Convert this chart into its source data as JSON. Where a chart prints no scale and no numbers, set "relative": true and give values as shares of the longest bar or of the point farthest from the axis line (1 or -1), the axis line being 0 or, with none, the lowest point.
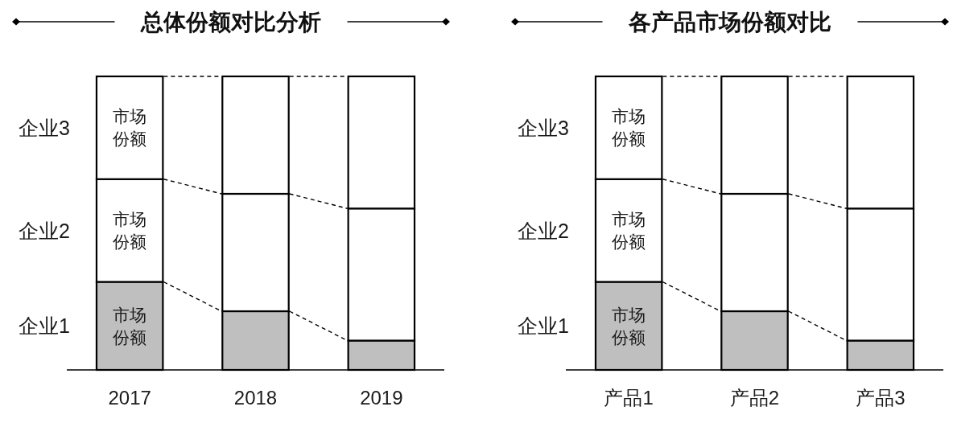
{
  "chart_data": [
    {
      "type": "bar",
      "title": "总体份额对比分析",
      "categories": [
        "2017",
        "2018",
        "2019"
      ],
      "stacked": true,
      "relative": true,
      "line_style": "dashed",
      "series": [
        {
          "name": "企业1",
          "color": "#bfbfbf",
          "values": [
            0.3,
            0.2,
            0.1
          ]
        },
        {
          "name": "企业2",
          "color": "#ffffff",
          "values": [
            0.35,
            0.4,
            0.45
          ]
        },
        {
          "name": "企业3",
          "color": "#ffffff",
          "values": [
            0.35,
            0.4,
            0.45
          ]
        }
      ],
      "annotations": [
        "市场份额",
        "市场份额",
        "市场份额"
      ]
    },
    {
      "type": "bar",
      "title": "各产品市场份额对比",
      "categories": [
        "产品1",
        "产品2",
        "产品3"
      ],
      "stacked": true,
      "relative": true,
      "line_style": "dashed",
      "series": [
        {
          "name": "企业1",
          "color": "#bfbfbf",
          "values": [
            0.3,
            0.2,
            0.1
          ]
        },
        {
          "name": "企业2",
          "color": "#ffffff",
          "values": [
            0.35,
            0.4,
            0.45
          ]
        },
        {
          "name": "企业3",
          "color": "#ffffff",
          "values": [
            0.35,
            0.4,
            0.45
          ]
        }
      ],
      "annotations": [
        "市场份额",
        "市场份额",
        "市场份额"
      ]
    }
  ]
}
